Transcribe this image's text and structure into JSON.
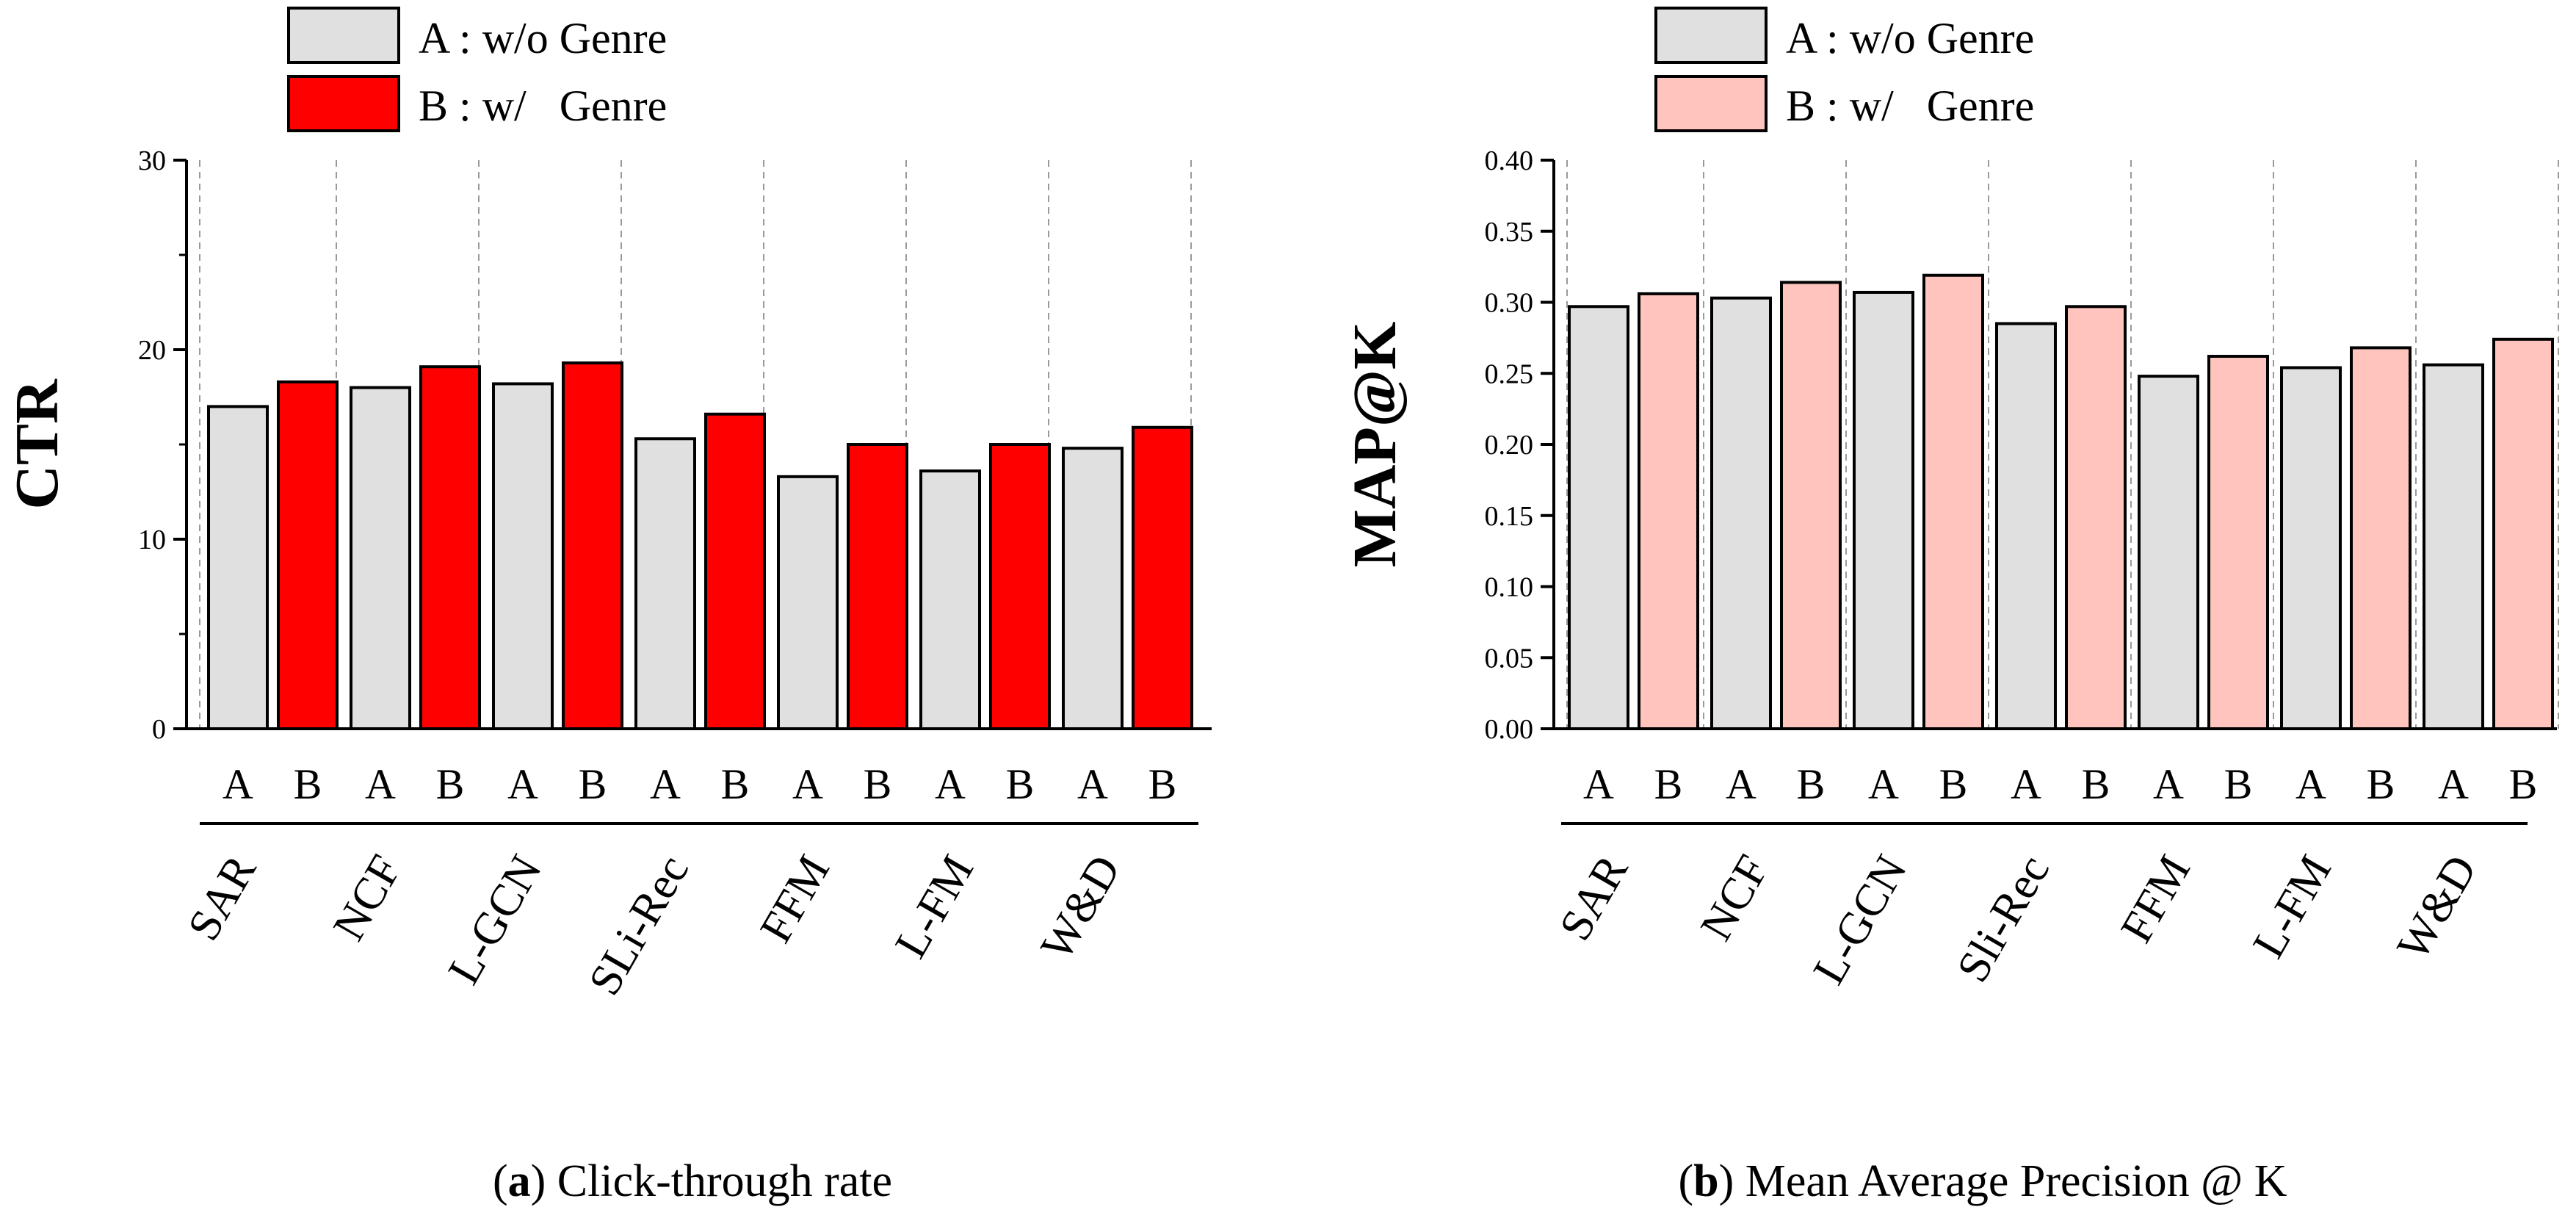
{
  "chart_data": [
    {
      "type": "bar",
      "title": "",
      "ylabel": "CTR",
      "ylim": [
        0,
        30
      ],
      "yticks": [
        "0",
        "10",
        "20",
        "30"
      ],
      "grid": "vertical-dashed-between-groups",
      "legend": [
        {
          "label": "A : w/o Genre",
          "color": "#e0e0e0"
        },
        {
          "label": "B : w/   Genre",
          "color": "#ff0000"
        }
      ],
      "groups": [
        "SAR",
        "NCF",
        "L-GCN",
        "SLi-Rec",
        "FFM",
        "L-FM",
        "W&D"
      ],
      "bar_labels": [
        "A",
        "B"
      ],
      "series": [
        {
          "name": "A",
          "color": "#e0e0e0",
          "values": [
            17.0,
            18.0,
            18.2,
            15.3,
            13.3,
            13.6,
            14.8
          ]
        },
        {
          "name": "B",
          "color": "#ff0000",
          "values": [
            18.3,
            19.1,
            19.3,
            16.6,
            15.0,
            15.0,
            15.9
          ]
        }
      ],
      "caption_letter": "a",
      "caption_text": " Click-through rate"
    },
    {
      "type": "bar",
      "title": "",
      "ylabel": "MAP@K",
      "ylim": [
        0,
        0.4
      ],
      "yticks": [
        "0.00",
        "0.05",
        "0.10",
        "0.15",
        "0.20",
        "0.25",
        "0.30",
        "0.35",
        "0.40"
      ],
      "grid": "vertical-dashed-between-groups",
      "legend": [
        {
          "label": "A : w/o Genre",
          "color": "#e0e0e0"
        },
        {
          "label": "B : w/   Genre",
          "color": "#ffc4bd"
        }
      ],
      "groups": [
        "SAR",
        "NCF",
        "L-GCN",
        "Sli-Rec",
        "FFM",
        "L-FM",
        "W&D"
      ],
      "bar_labels": [
        "A",
        "B"
      ],
      "series": [
        {
          "name": "A",
          "color": "#e0e0e0",
          "values": [
            0.297,
            0.303,
            0.307,
            0.285,
            0.248,
            0.254,
            0.256
          ]
        },
        {
          "name": "B",
          "color": "#ffc4bd",
          "values": [
            0.306,
            0.314,
            0.319,
            0.297,
            0.262,
            0.268,
            0.274
          ]
        }
      ],
      "caption_letter": "b",
      "caption_text": " Mean Average Precision @ K"
    }
  ]
}
